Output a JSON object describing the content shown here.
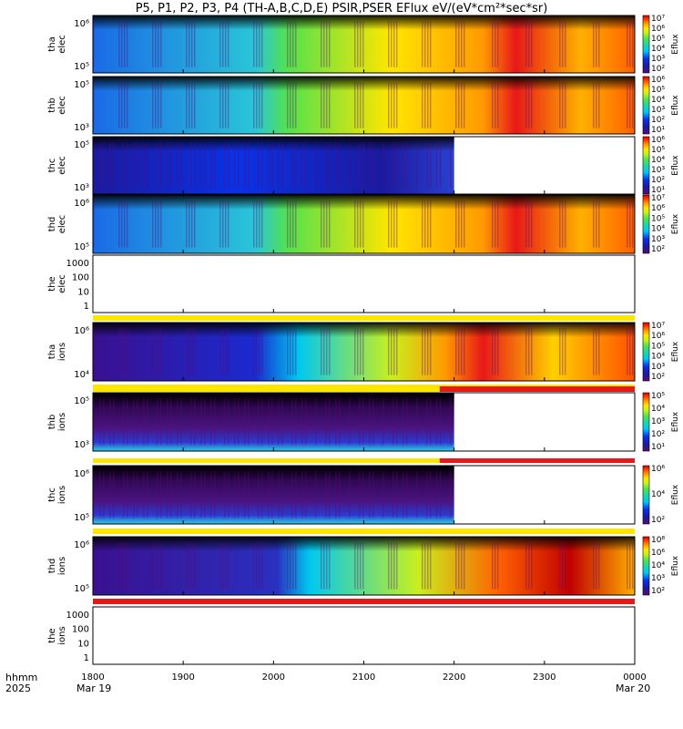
{
  "title": "P5, P1, P2, P3, P4 (TH-A,B,C,D,E) PSIR,PSER EFlux eV/(eV*cm²*sec*sr)",
  "colorbar_label": "Eflux",
  "colorscale": [
    "#5a0a78",
    "#1a1aa0",
    "#0a32e6",
    "#00c8f0",
    "#22d6a0",
    "#54e24c",
    "#c8f01e",
    "#ffe600",
    "#ff9a00",
    "#ff4000",
    "#d80000"
  ],
  "strip_colors": {
    "yellow": "#ffe600",
    "red": "#e81818"
  },
  "bottom": {
    "hhmm_label": "hhmm",
    "year_label": "2025",
    "start_date": "Mar 19",
    "end_date": "Mar 20"
  },
  "chart_data": {
    "type": "heatmap",
    "x_time_hhmm": [
      "1800",
      "1900",
      "2000",
      "2100",
      "2200",
      "2300",
      "0000"
    ],
    "panels": [
      {
        "name": "tha elec",
        "ylabel": [
          "tha",
          "elec"
        ],
        "yticks": [
          "10⁶",
          "10⁵"
        ],
        "cbticks": [
          "10⁷",
          "10⁶",
          "10⁵",
          "10⁴",
          "10³",
          "10²"
        ],
        "data_end_hhmm": "0000"
      },
      {
        "name": "thb elec",
        "ylabel": [
          "thb",
          "elec"
        ],
        "yticks": [
          "10⁵",
          "10³"
        ],
        "cbticks": [
          "10⁶",
          "10⁵",
          "10⁴",
          "10³",
          "10²",
          "10¹"
        ],
        "data_end_hhmm": "0000"
      },
      {
        "name": "thc elec",
        "ylabel": [
          "thc",
          "elec"
        ],
        "yticks": [
          "10⁵",
          "10³"
        ],
        "cbticks": [
          "10⁶",
          "10⁵",
          "10⁴",
          "10³",
          "10²",
          "10¹"
        ],
        "data_end_hhmm": "2200"
      },
      {
        "name": "thd elec",
        "ylabel": [
          "thd",
          "elec"
        ],
        "yticks": [
          "10⁶",
          "10⁵"
        ],
        "cbticks": [
          "10⁷",
          "10⁶",
          "10⁵",
          "10⁴",
          "10³",
          "10²"
        ],
        "data_end_hhmm": "0000"
      },
      {
        "name": "the elec",
        "ylabel": [
          "the",
          "elec"
        ],
        "yticks": [
          "1000",
          "100",
          "10",
          "1"
        ],
        "empty": true
      },
      {
        "name": "tha ions",
        "ylabel": [
          "tha",
          "ions"
        ],
        "yticks": [
          "10⁶",
          "10⁴"
        ],
        "cbticks": [
          "10⁷",
          "10⁶",
          "10⁵",
          "10⁴",
          "10³",
          "10²"
        ],
        "data_end_hhmm": "0000"
      },
      {
        "name": "thb ions",
        "ylabel": [
          "thb",
          "ions"
        ],
        "yticks": [
          "10⁵",
          "10³"
        ],
        "cbticks": [
          "10⁵",
          "10⁴",
          "10³",
          "10²",
          "10¹"
        ],
        "data_end_hhmm": "2200"
      },
      {
        "name": "thc ions",
        "ylabel": [
          "thc",
          "ions"
        ],
        "yticks": [
          "10⁶",
          "10⁵"
        ],
        "cbticks": [
          "10⁶",
          "10⁴",
          "10²"
        ],
        "data_end_hhmm": "2200"
      },
      {
        "name": "thd ions",
        "ylabel": [
          "thd",
          "ions"
        ],
        "yticks": [
          "10⁶",
          "10⁵"
        ],
        "cbticks": [
          "10⁸",
          "10⁶",
          "10⁴",
          "10³",
          "10²"
        ],
        "data_end_hhmm": "0000"
      },
      {
        "name": "the ions",
        "ylabel": [
          "the",
          "ions"
        ],
        "yticks": [
          "1000",
          "100",
          "10",
          "1"
        ],
        "empty": true
      }
    ],
    "x_axis_dates": [
      "Mar 19",
      "Mar 20"
    ]
  }
}
